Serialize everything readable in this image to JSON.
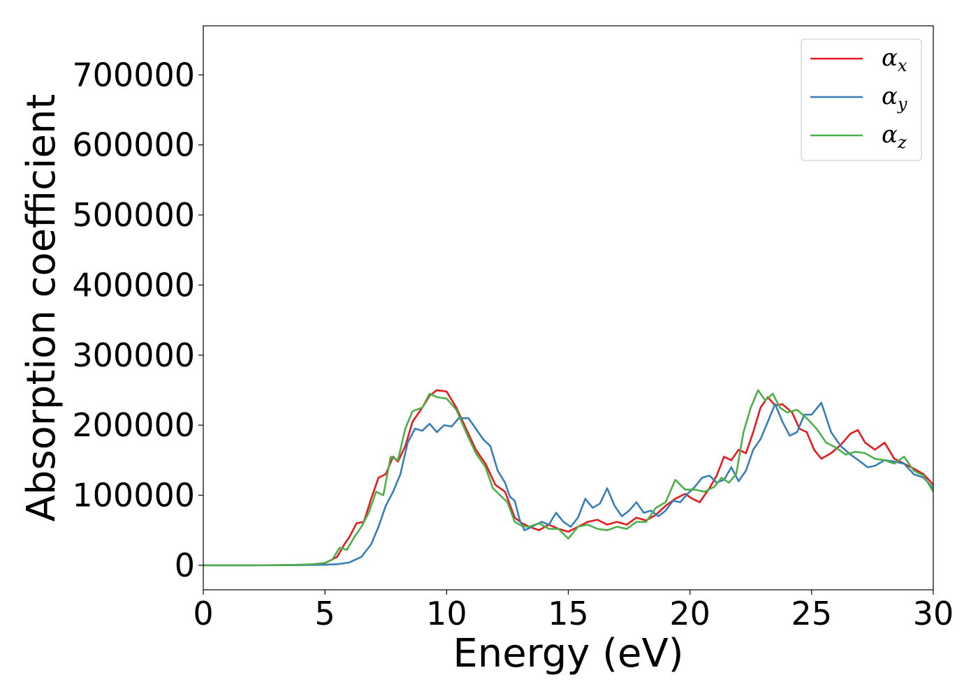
{
  "chart_data": {
    "type": "line",
    "title": "",
    "xlabel": "Energy (eV)",
    "ylabel": "Absorption coefficient",
    "xlim": [
      0,
      30
    ],
    "ylim": [
      -35000,
      770000
    ],
    "xticks": [
      0,
      5,
      10,
      15,
      20,
      25,
      30
    ],
    "xtick_labels": [
      "0",
      "5",
      "10",
      "15",
      "20",
      "25",
      "30"
    ],
    "yticks": [
      0,
      100000,
      200000,
      300000,
      400000,
      500000,
      600000,
      700000
    ],
    "ytick_labels": [
      "0",
      "100000",
      "200000",
      "300000",
      "400000",
      "500000",
      "600000",
      "700000"
    ],
    "grid": false,
    "legend_position": "top-right",
    "series": [
      {
        "name": "α_x",
        "legend_base": "α",
        "legend_sub": "x",
        "color": "#e41a1c",
        "points": [
          [
            0,
            0
          ],
          [
            1,
            0
          ],
          [
            2,
            0
          ],
          [
            3,
            200
          ],
          [
            4,
            700
          ],
          [
            4.5,
            1200
          ],
          [
            5,
            3000
          ],
          [
            5.5,
            12000
          ],
          [
            5.8,
            30000
          ],
          [
            6.0,
            40000
          ],
          [
            6.3,
            60000
          ],
          [
            6.6,
            62000
          ],
          [
            6.9,
            95000
          ],
          [
            7.2,
            125000
          ],
          [
            7.5,
            130000
          ],
          [
            7.8,
            155000
          ],
          [
            8.0,
            148000
          ],
          [
            8.3,
            170000
          ],
          [
            8.6,
            205000
          ],
          [
            9.0,
            225000
          ],
          [
            9.3,
            242000
          ],
          [
            9.6,
            250000
          ],
          [
            10.0,
            248000
          ],
          [
            10.4,
            225000
          ],
          [
            10.8,
            195000
          ],
          [
            11.2,
            165000
          ],
          [
            11.6,
            145000
          ],
          [
            12.0,
            115000
          ],
          [
            12.4,
            105000
          ],
          [
            12.8,
            68000
          ],
          [
            13.1,
            60000
          ],
          [
            13.4,
            55000
          ],
          [
            13.8,
            50000
          ],
          [
            14.2,
            58000
          ],
          [
            14.6,
            52000
          ],
          [
            15.0,
            48000
          ],
          [
            15.4,
            55000
          ],
          [
            15.8,
            62000
          ],
          [
            16.2,
            65000
          ],
          [
            16.6,
            58000
          ],
          [
            17.0,
            62000
          ],
          [
            17.4,
            58000
          ],
          [
            17.8,
            68000
          ],
          [
            18.2,
            64000
          ],
          [
            18.6,
            72000
          ],
          [
            19.0,
            85000
          ],
          [
            19.4,
            95000
          ],
          [
            19.8,
            102000
          ],
          [
            20.1,
            95000
          ],
          [
            20.4,
            90000
          ],
          [
            20.8,
            110000
          ],
          [
            21.1,
            128000
          ],
          [
            21.4,
            155000
          ],
          [
            21.7,
            150000
          ],
          [
            22.0,
            165000
          ],
          [
            22.3,
            160000
          ],
          [
            22.6,
            190000
          ],
          [
            22.9,
            225000
          ],
          [
            23.2,
            240000
          ],
          [
            23.5,
            228000
          ],
          [
            23.8,
            230000
          ],
          [
            24.2,
            218000
          ],
          [
            24.5,
            195000
          ],
          [
            24.8,
            190000
          ],
          [
            25.1,
            165000
          ],
          [
            25.4,
            152000
          ],
          [
            25.8,
            160000
          ],
          [
            26.2,
            172000
          ],
          [
            26.6,
            188000
          ],
          [
            26.9,
            193000
          ],
          [
            27.2,
            175000
          ],
          [
            27.6,
            165000
          ],
          [
            28.0,
            175000
          ],
          [
            28.4,
            152000
          ],
          [
            28.8,
            145000
          ],
          [
            29.2,
            138000
          ],
          [
            29.6,
            130000
          ],
          [
            30.0,
            115000
          ]
        ]
      },
      {
        "name": "α_y",
        "legend_base": "α",
        "legend_sub": "y",
        "color": "#377eb8",
        "points": [
          [
            0,
            0
          ],
          [
            1,
            0
          ],
          [
            2,
            0
          ],
          [
            3,
            0
          ],
          [
            4,
            300
          ],
          [
            5,
            800
          ],
          [
            5.5,
            1500
          ],
          [
            6.0,
            4000
          ],
          [
            6.5,
            12000
          ],
          [
            6.9,
            30000
          ],
          [
            7.2,
            55000
          ],
          [
            7.5,
            85000
          ],
          [
            7.8,
            105000
          ],
          [
            8.1,
            130000
          ],
          [
            8.4,
            175000
          ],
          [
            8.7,
            195000
          ],
          [
            9.0,
            192000
          ],
          [
            9.3,
            202000
          ],
          [
            9.6,
            190000
          ],
          [
            9.9,
            200000
          ],
          [
            10.2,
            198000
          ],
          [
            10.5,
            210000
          ],
          [
            10.9,
            210000
          ],
          [
            11.2,
            195000
          ],
          [
            11.5,
            180000
          ],
          [
            11.8,
            170000
          ],
          [
            12.1,
            135000
          ],
          [
            12.4,
            118000
          ],
          [
            12.6,
            98000
          ],
          [
            12.8,
            92000
          ],
          [
            13.0,
            65000
          ],
          [
            13.2,
            50000
          ],
          [
            13.5,
            55000
          ],
          [
            13.9,
            62000
          ],
          [
            14.2,
            58000
          ],
          [
            14.5,
            75000
          ],
          [
            14.8,
            62000
          ],
          [
            15.1,
            55000
          ],
          [
            15.4,
            68000
          ],
          [
            15.7,
            95000
          ],
          [
            16.0,
            82000
          ],
          [
            16.3,
            88000
          ],
          [
            16.6,
            110000
          ],
          [
            16.9,
            85000
          ],
          [
            17.2,
            70000
          ],
          [
            17.5,
            78000
          ],
          [
            17.8,
            90000
          ],
          [
            18.1,
            75000
          ],
          [
            18.4,
            78000
          ],
          [
            18.7,
            70000
          ],
          [
            19.0,
            78000
          ],
          [
            19.3,
            92000
          ],
          [
            19.6,
            90000
          ],
          [
            19.9,
            102000
          ],
          [
            20.2,
            112000
          ],
          [
            20.5,
            125000
          ],
          [
            20.8,
            128000
          ],
          [
            21.1,
            118000
          ],
          [
            21.4,
            122000
          ],
          [
            21.7,
            140000
          ],
          [
            22.0,
            120000
          ],
          [
            22.3,
            135000
          ],
          [
            22.6,
            165000
          ],
          [
            22.9,
            180000
          ],
          [
            23.2,
            205000
          ],
          [
            23.5,
            230000
          ],
          [
            23.8,
            205000
          ],
          [
            24.1,
            185000
          ],
          [
            24.4,
            190000
          ],
          [
            24.7,
            215000
          ],
          [
            25.0,
            215000
          ],
          [
            25.4,
            232000
          ],
          [
            25.8,
            190000
          ],
          [
            26.2,
            170000
          ],
          [
            26.6,
            158000
          ],
          [
            27.0,
            148000
          ],
          [
            27.3,
            140000
          ],
          [
            27.6,
            142000
          ],
          [
            28.0,
            150000
          ],
          [
            28.4,
            148000
          ],
          [
            28.8,
            145000
          ],
          [
            29.2,
            130000
          ],
          [
            29.6,
            125000
          ],
          [
            30.0,
            110000
          ]
        ]
      },
      {
        "name": "α_z",
        "legend_base": "α",
        "legend_sub": "z",
        "color": "#4daf4a",
        "points": [
          [
            0,
            0
          ],
          [
            1,
            0
          ],
          [
            2,
            0
          ],
          [
            3,
            200
          ],
          [
            4,
            800
          ],
          [
            4.5,
            1500
          ],
          [
            5.0,
            3500
          ],
          [
            5.3,
            8000
          ],
          [
            5.6,
            25000
          ],
          [
            5.9,
            22000
          ],
          [
            6.2,
            40000
          ],
          [
            6.5,
            55000
          ],
          [
            6.8,
            75000
          ],
          [
            7.1,
            105000
          ],
          [
            7.4,
            100000
          ],
          [
            7.7,
            155000
          ],
          [
            8.0,
            150000
          ],
          [
            8.3,
            195000
          ],
          [
            8.6,
            220000
          ],
          [
            9.0,
            225000
          ],
          [
            9.3,
            245000
          ],
          [
            9.6,
            240000
          ],
          [
            10.0,
            238000
          ],
          [
            10.4,
            222000
          ],
          [
            10.8,
            190000
          ],
          [
            11.2,
            160000
          ],
          [
            11.6,
            140000
          ],
          [
            11.9,
            110000
          ],
          [
            12.2,
            100000
          ],
          [
            12.5,
            90000
          ],
          [
            12.8,
            62000
          ],
          [
            13.1,
            56000
          ],
          [
            13.4,
            55000
          ],
          [
            13.8,
            60000
          ],
          [
            14.2,
            52000
          ],
          [
            14.6,
            52000
          ],
          [
            15.0,
            38000
          ],
          [
            15.4,
            55000
          ],
          [
            15.8,
            58000
          ],
          [
            16.2,
            52000
          ],
          [
            16.6,
            50000
          ],
          [
            17.0,
            55000
          ],
          [
            17.4,
            52000
          ],
          [
            17.8,
            62000
          ],
          [
            18.2,
            62000
          ],
          [
            18.6,
            82000
          ],
          [
            19.0,
            90000
          ],
          [
            19.4,
            122000
          ],
          [
            19.8,
            108000
          ],
          [
            20.2,
            108000
          ],
          [
            20.6,
            105000
          ],
          [
            21.0,
            112000
          ],
          [
            21.3,
            125000
          ],
          [
            21.6,
            118000
          ],
          [
            21.9,
            130000
          ],
          [
            22.2,
            190000
          ],
          [
            22.5,
            225000
          ],
          [
            22.8,
            250000
          ],
          [
            23.1,
            235000
          ],
          [
            23.4,
            245000
          ],
          [
            23.7,
            225000
          ],
          [
            24.0,
            218000
          ],
          [
            24.4,
            222000
          ],
          [
            24.8,
            210000
          ],
          [
            25.2,
            195000
          ],
          [
            25.6,
            175000
          ],
          [
            26.0,
            168000
          ],
          [
            26.4,
            158000
          ],
          [
            26.8,
            162000
          ],
          [
            27.2,
            160000
          ],
          [
            27.6,
            152000
          ],
          [
            28.0,
            150000
          ],
          [
            28.4,
            145000
          ],
          [
            28.8,
            155000
          ],
          [
            29.2,
            135000
          ],
          [
            29.6,
            128000
          ],
          [
            30.0,
            105000
          ]
        ]
      }
    ]
  }
}
